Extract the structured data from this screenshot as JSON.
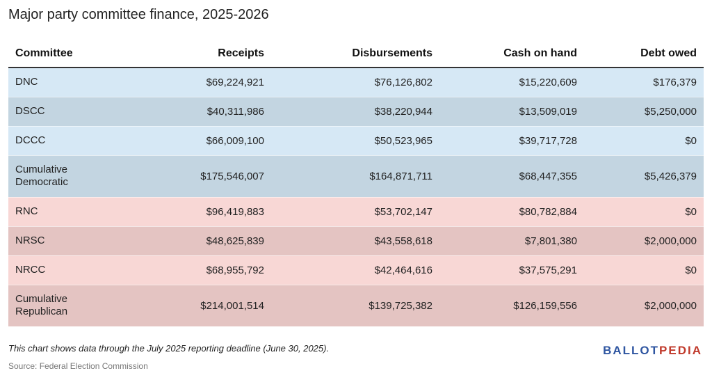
{
  "title": "Major party committee finance, 2025-2026",
  "chart_data": {
    "type": "table",
    "columns": [
      "Committee",
      "Receipts",
      "Disbursements",
      "Cash on hand",
      "Debt owed"
    ],
    "rows": [
      {
        "name": "DNC",
        "values": [
          "$69,224,921",
          "$76,126,802",
          "$15,220,609",
          "$176,379"
        ],
        "bg": "#d6e8f5"
      },
      {
        "name": "DSCC",
        "values": [
          "$40,311,986",
          "$38,220,944",
          "$13,509,019",
          "$5,250,000"
        ],
        "bg": "#c3d5e1"
      },
      {
        "name": "DCCC",
        "values": [
          "$66,009,100",
          "$50,523,965",
          "$39,717,728",
          "$0"
        ],
        "bg": "#d6e8f5"
      },
      {
        "name": "Cumulative Democratic",
        "values": [
          "$175,546,007",
          "$164,871,711",
          "$68,447,355",
          "$5,426,379"
        ],
        "bg": "#c3d5e1"
      },
      {
        "name": "RNC",
        "values": [
          "$96,419,883",
          "$53,702,147",
          "$80,782,884",
          "$0"
        ],
        "bg": "#f8d7d5"
      },
      {
        "name": "NRSC",
        "values": [
          "$48,625,839",
          "$43,558,618",
          "$7,801,380",
          "$2,000,000"
        ],
        "bg": "#e4c4c2"
      },
      {
        "name": "NRCC",
        "values": [
          "$68,955,792",
          "$42,464,616",
          "$37,575,291",
          "$0"
        ],
        "bg": "#f8d7d5"
      },
      {
        "name": "Cumulative Republican",
        "values": [
          "$214,001,514",
          "$139,725,382",
          "$126,159,556",
          "$2,000,000"
        ],
        "bg": "#e4c4c2"
      }
    ]
  },
  "note": "This chart shows data through the July 2025 reporting deadline (June 30, 2025).",
  "source": "Source: Federal Election Commission",
  "logo": {
    "part1": "BALLOT",
    "part2": "PEDIA",
    "color1": "#2f56a1",
    "color2": "#c0392b"
  }
}
